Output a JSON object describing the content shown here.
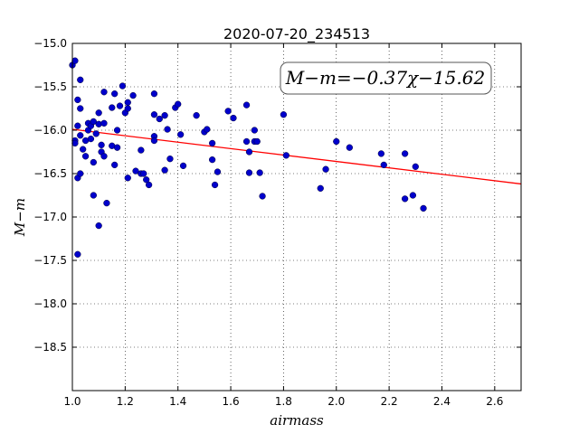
{
  "chart_data": {
    "type": "scatter",
    "title": "2020-07-20_234513",
    "xlabel": "airmass",
    "ylabel": "M−m",
    "xlim": [
      1.0,
      2.7
    ],
    "ylim": [
      -15.0,
      -19.0
    ],
    "y_inverted": true,
    "grid": true,
    "x_ticks": [
      1.0,
      1.2,
      1.4,
      1.6,
      1.8,
      2.0,
      2.2,
      2.4,
      2.6
    ],
    "x_tick_labels": [
      "1.0",
      "1.2",
      "1.4",
      "1.6",
      "1.8",
      "2.0",
      "2.2",
      "2.4",
      "2.6"
    ],
    "y_ticks": [
      -15.0,
      -15.5,
      -16.0,
      -16.5,
      -17.0,
      -17.5,
      -18.0,
      -18.5
    ],
    "y_tick_labels": [
      "−15.0",
      "−15.5",
      "−16.0",
      "−16.5",
      "−17.0",
      "−17.5",
      "−18.0",
      "−18.5"
    ],
    "annotation": "M−m=−0.37χ−15.62",
    "fit_line": {
      "slope": -0.37,
      "intercept": -15.62,
      "color": "#ff0000"
    },
    "point_color": "#0000cc",
    "points": [
      [
        1.0,
        -15.25
      ],
      [
        1.01,
        -15.2
      ],
      [
        1.02,
        -15.65
      ],
      [
        1.03,
        -15.42
      ],
      [
        1.03,
        -15.75
      ],
      [
        1.01,
        -16.12
      ],
      [
        1.01,
        -16.15
      ],
      [
        1.03,
        -16.06
      ],
      [
        1.02,
        -15.95
      ],
      [
        1.02,
        -16.55
      ],
      [
        1.03,
        -16.5
      ],
      [
        1.02,
        -17.43
      ],
      [
        1.04,
        -16.22
      ],
      [
        1.05,
        -16.3
      ],
      [
        1.05,
        -16.12
      ],
      [
        1.06,
        -16.0
      ],
      [
        1.06,
        -15.92
      ],
      [
        1.07,
        -15.95
      ],
      [
        1.07,
        -16.1
      ],
      [
        1.08,
        -15.9
      ],
      [
        1.08,
        -16.37
      ],
      [
        1.08,
        -16.75
      ],
      [
        1.09,
        -16.04
      ],
      [
        1.1,
        -15.93
      ],
      [
        1.1,
        -17.1
      ],
      [
        1.1,
        -15.8
      ],
      [
        1.11,
        -16.17
      ],
      [
        1.11,
        -16.25
      ],
      [
        1.12,
        -16.3
      ],
      [
        1.12,
        -15.92
      ],
      [
        1.12,
        -15.56
      ],
      [
        1.13,
        -16.84
      ],
      [
        1.15,
        -16.18
      ],
      [
        1.15,
        -15.74
      ],
      [
        1.16,
        -16.4
      ],
      [
        1.16,
        -15.58
      ],
      [
        1.17,
        -16.2
      ],
      [
        1.17,
        -16.0
      ],
      [
        1.18,
        -15.72
      ],
      [
        1.19,
        -15.49
      ],
      [
        1.2,
        -15.8
      ],
      [
        1.21,
        -15.75
      ],
      [
        1.21,
        -15.68
      ],
      [
        1.21,
        -16.55
      ],
      [
        1.23,
        -15.6
      ],
      [
        1.24,
        -16.47
      ],
      [
        1.26,
        -16.23
      ],
      [
        1.26,
        -16.5
      ],
      [
        1.27,
        -16.5
      ],
      [
        1.28,
        -16.57
      ],
      [
        1.29,
        -16.63
      ],
      [
        1.31,
        -15.58
      ],
      [
        1.31,
        -15.82
      ],
      [
        1.31,
        -16.07
      ],
      [
        1.31,
        -16.12
      ],
      [
        1.33,
        -15.87
      ],
      [
        1.35,
        -15.83
      ],
      [
        1.35,
        -16.46
      ],
      [
        1.36,
        -15.99
      ],
      [
        1.37,
        -16.33
      ],
      [
        1.39,
        -15.74
      ],
      [
        1.4,
        -15.7
      ],
      [
        1.41,
        -16.05
      ],
      [
        1.42,
        -16.41
      ],
      [
        1.47,
        -15.83
      ],
      [
        1.5,
        -16.02
      ],
      [
        1.51,
        -15.99
      ],
      [
        1.53,
        -16.15
      ],
      [
        1.53,
        -16.34
      ],
      [
        1.54,
        -16.63
      ],
      [
        1.55,
        -16.48
      ],
      [
        1.59,
        -15.78
      ],
      [
        1.61,
        -15.86
      ],
      [
        1.66,
        -15.71
      ],
      [
        1.66,
        -16.13
      ],
      [
        1.67,
        -16.25
      ],
      [
        1.67,
        -16.49
      ],
      [
        1.69,
        -16.0
      ],
      [
        1.69,
        -16.13
      ],
      [
        1.7,
        -16.13
      ],
      [
        1.71,
        -16.49
      ],
      [
        1.72,
        -16.76
      ],
      [
        1.8,
        -15.82
      ],
      [
        1.81,
        -16.29
      ],
      [
        1.94,
        -16.67
      ],
      [
        1.96,
        -16.45
      ],
      [
        2.0,
        -16.13
      ],
      [
        2.05,
        -16.2
      ],
      [
        2.17,
        -16.27
      ],
      [
        2.18,
        -16.4
      ],
      [
        2.26,
        -16.27
      ],
      [
        2.26,
        -16.79
      ],
      [
        2.29,
        -16.75
      ],
      [
        2.3,
        -16.42
      ],
      [
        2.33,
        -16.9
      ]
    ]
  }
}
